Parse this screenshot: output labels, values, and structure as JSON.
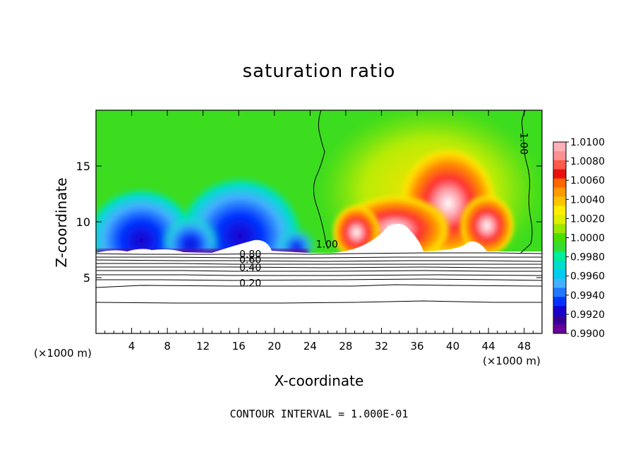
{
  "chart_data": {
    "type": "heatmap",
    "title": "saturation ratio",
    "xlabel": "X-coordinate",
    "ylabel": "Z-coordinate",
    "x_unit_left": "(×1000 m)",
    "x_unit_right": "(×1000 m)",
    "xlim": [
      0,
      50
    ],
    "ylim": [
      0,
      20
    ],
    "x_ticks": [
      4,
      8,
      12,
      16,
      20,
      24,
      28,
      32,
      36,
      40,
      44,
      48
    ],
    "y_ticks": [
      5,
      10,
      15
    ],
    "colorbar": {
      "levels": [
        "1.0100",
        "1.0080",
        "1.0060",
        "1.0040",
        "1.0020",
        "1.0000",
        "0.9980",
        "0.9960",
        "0.9940",
        "0.9920",
        "0.9900"
      ],
      "colors": [
        "#ffb0b8",
        "#ff9090",
        "#ff5a4a",
        "#e81010",
        "#ff6600",
        "#ff9900",
        "#ffc400",
        "#ffee00",
        "#ddf000",
        "#9ee800",
        "#4bdd00",
        "#33dd33",
        "#00ee99",
        "#00ddcc",
        "#00ccee",
        "#44b0ff",
        "#2277ff",
        "#0033ff",
        "#1a00cc",
        "#330099",
        "#660099"
      ]
    },
    "contour_labels": [
      {
        "x": 25.9,
        "z": 7.7,
        "text": "1.00"
      },
      {
        "x": 47.6,
        "z": 17.0,
        "text": "1.00"
      },
      {
        "x": 17.3,
        "z": 6.8,
        "text": "0.80"
      },
      {
        "x": 17.3,
        "z": 6.3,
        "text": "0.60"
      },
      {
        "x": 17.3,
        "z": 5.6,
        "text": "0.40"
      },
      {
        "x": 17.3,
        "z": 4.2,
        "text": "0.20"
      }
    ],
    "footer": "CONTOUR INTERVAL = 1.000E-01"
  }
}
